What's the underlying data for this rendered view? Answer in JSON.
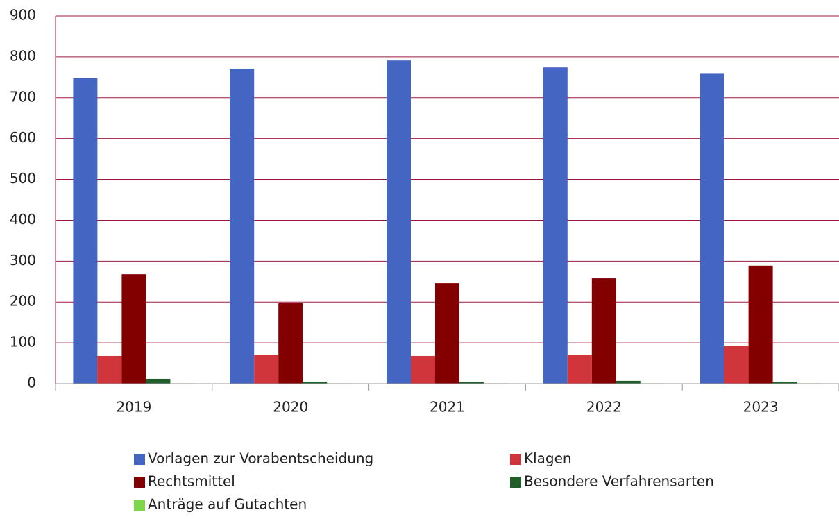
{
  "chart_data": {
    "type": "bar",
    "categories": [
      "2019",
      "2020",
      "2021",
      "2022",
      "2023"
    ],
    "series": [
      {
        "name": "Vorlagen zur Vorabentscheidung",
        "color": "#4565c2",
        "values": [
          748,
          771,
          791,
          774,
          760
        ]
      },
      {
        "name": "Klagen",
        "color": "#d0353b",
        "values": [
          68,
          70,
          68,
          70,
          93
        ]
      },
      {
        "name": "Rechtsmittel",
        "color": "#820000",
        "values": [
          268,
          197,
          246,
          258,
          289
        ]
      },
      {
        "name": "Besondere Verfahrensarten",
        "color": "#1f5f2a",
        "values": [
          12,
          5,
          4,
          7,
          5
        ]
      },
      {
        "name": "Anträge auf Gutachten",
        "color": "#7ed64b",
        "values": [
          1,
          1,
          1,
          1,
          1
        ]
      }
    ],
    "ylim": [
      0,
      900
    ],
    "yticks": [
      0,
      100,
      200,
      300,
      400,
      500,
      600,
      700,
      800,
      900
    ],
    "grid": true
  }
}
